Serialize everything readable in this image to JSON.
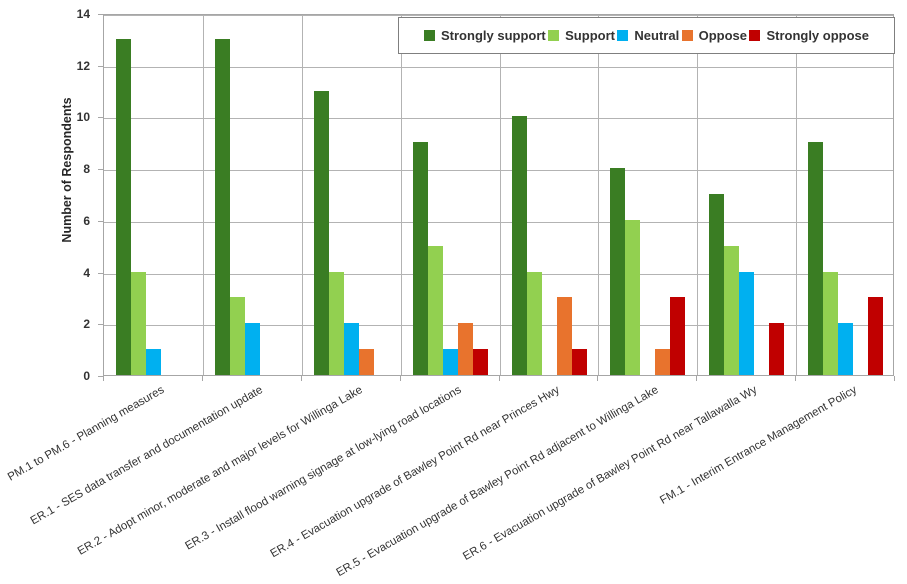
{
  "chart_data": {
    "type": "bar",
    "title": "",
    "xlabel": "",
    "ylabel": "Number of Respondents",
    "ylim": [
      0,
      14
    ],
    "ytick_step": 2,
    "grid": true,
    "legend_position": "top-inside",
    "categories": [
      "PM.1 to PM.6 - Planning measures",
      "ER.1 - SES data transfer and documentation update",
      "ER.2 - Adopt minor, moderate and major levels for Willinga Lake",
      "ER.3 - Install flood warning signage at low-lying road locations",
      "ER.4 - Evacuation upgrade of Bawley Point Rd near Princes Hwy",
      "ER.5 - Evacuation upgrade of Bawley Point Rd adjacent to Willinga Lake",
      "ER.6 - Evacuation upgrade of Bawley Point Rd near Tallawalla Wy",
      "FM.1 - Interim Entrance Management Policy"
    ],
    "series": [
      {
        "name": "Strongly support",
        "color": "#3A7D23",
        "values": [
          13,
          13,
          11,
          9,
          10,
          8,
          7,
          9
        ]
      },
      {
        "name": "Support",
        "color": "#92D050",
        "values": [
          4,
          3,
          4,
          5,
          4,
          6,
          5,
          4
        ]
      },
      {
        "name": "Neutral",
        "color": "#00B0F0",
        "values": [
          1,
          2,
          2,
          1,
          0,
          0,
          4,
          2
        ]
      },
      {
        "name": "Oppose",
        "color": "#E8732D",
        "values": [
          0,
          0,
          1,
          2,
          3,
          1,
          0,
          0
        ]
      },
      {
        "name": "Strongly oppose",
        "color": "#C00000",
        "values": [
          0,
          0,
          0,
          1,
          1,
          3,
          2,
          3
        ]
      }
    ]
  },
  "style_colors": {
    "gridline": "#B3B3B3",
    "axis": "#A6A6A6",
    "legend_border": "#7F7F7F",
    "text": "#333333"
  }
}
